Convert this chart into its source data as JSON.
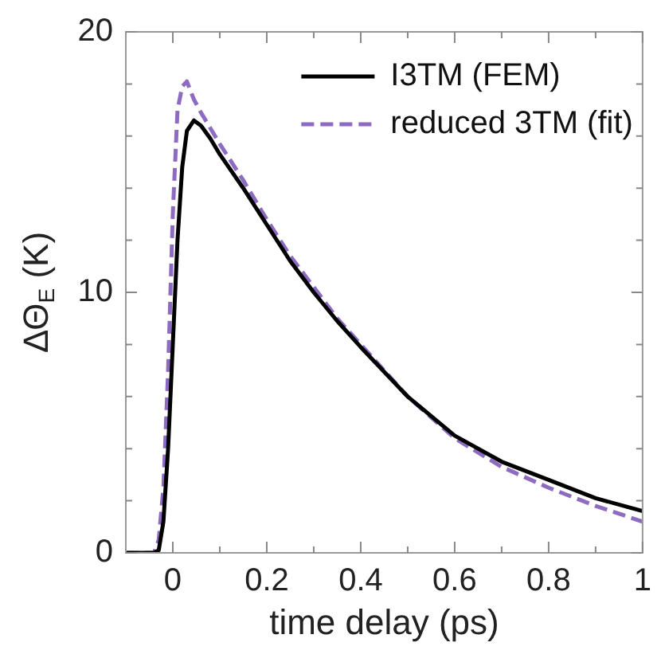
{
  "chart_data": {
    "type": "line",
    "xlabel": "time delay (ps)",
    "ylabel": "ΔΘ$_{E}$ (K)",
    "x": [
      -0.1,
      -0.04,
      -0.03,
      -0.02,
      -0.01,
      0,
      0.01,
      0.02,
      0.03,
      0.045,
      0.06,
      0.08,
      0.1,
      0.15,
      0.2,
      0.25,
      0.3,
      0.35,
      0.4,
      0.5,
      0.6,
      0.7,
      0.8,
      0.9,
      1.0
    ],
    "series": [
      {
        "name": "I3TM (FEM)",
        "color": "#000000",
        "line_style": "solid",
        "values": [
          0,
          0,
          0.1,
          1.2,
          4,
          8,
          12,
          14.8,
          16.2,
          16.6,
          16.4,
          15.9,
          15.3,
          14.0,
          12.6,
          11.2,
          10.0,
          8.9,
          7.9,
          6.0,
          4.5,
          3.5,
          2.8,
          2.1,
          1.6
        ]
      },
      {
        "name": "reduced 3TM (fit)",
        "color": "#8c6bc0",
        "line_style": "dashed",
        "values": [
          0,
          0,
          0.5,
          2.5,
          7,
          13,
          17,
          17.9,
          18.1,
          17.4,
          16.9,
          16.3,
          15.7,
          14.3,
          12.8,
          11.4,
          10.2,
          9.0,
          8.0,
          6.0,
          4.4,
          3.3,
          2.5,
          1.8,
          1.2
        ]
      }
    ],
    "xlim": [
      -0.1,
      1
    ],
    "xticks": [
      0,
      {
        "value": 0.1,
        "label": null
      },
      0.2,
      {
        "value": 0.3,
        "label": null
      },
      0.4,
      {
        "value": 0.5,
        "label": null
      },
      0.6,
      {
        "value": 0.7,
        "label": null
      },
      0.8,
      {
        "value": 0.9,
        "label": null
      },
      1
    ],
    "ylim": [
      0,
      20
    ],
    "yticks": [
      0,
      {
        "value": 2,
        "label": null
      },
      {
        "value": 4,
        "label": null
      },
      {
        "value": 6,
        "label": null
      },
      {
        "value": 8,
        "label": null
      },
      10,
      {
        "value": 12,
        "label": null
      },
      {
        "value": 14,
        "label": null
      },
      {
        "value": 16,
        "label": null
      },
      {
        "value": 18,
        "label": null
      },
      20
    ],
    "grid": false,
    "legend": "top right",
    "marker": "none"
  }
}
